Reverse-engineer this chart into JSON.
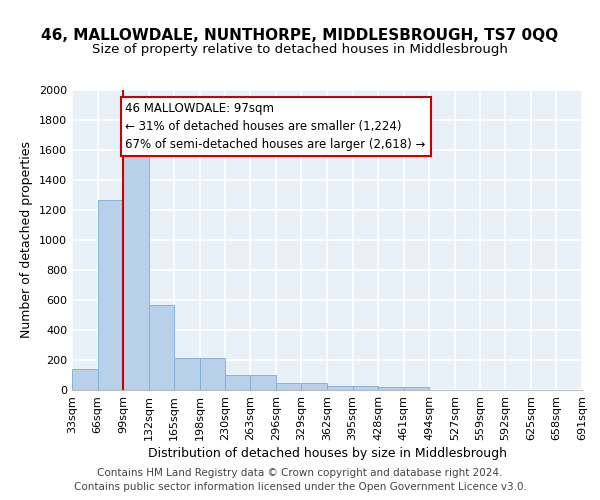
{
  "title": "46, MALLOWDALE, NUNTHORPE, MIDDLESBROUGH, TS7 0QQ",
  "subtitle": "Size of property relative to detached houses in Middlesbrough",
  "xlabel": "Distribution of detached houses by size in Middlesbrough",
  "ylabel": "Number of detached properties",
  "bin_edges": [
    33,
    66,
    99,
    132,
    165,
    198,
    230,
    263,
    296,
    329,
    362,
    395,
    428,
    461,
    494,
    527,
    559,
    592,
    625,
    658,
    691
  ],
  "bin_labels": [
    "33sqm",
    "66sqm",
    "99sqm",
    "132sqm",
    "165sqm",
    "198sqm",
    "230sqm",
    "263sqm",
    "296sqm",
    "329sqm",
    "362sqm",
    "395sqm",
    "428sqm",
    "461sqm",
    "494sqm",
    "527sqm",
    "559sqm",
    "592sqm",
    "625sqm",
    "658sqm",
    "691sqm"
  ],
  "values": [
    140,
    1265,
    1565,
    570,
    215,
    215,
    100,
    100,
    50,
    50,
    30,
    30,
    20,
    20,
    0,
    0,
    0,
    0,
    0,
    0
  ],
  "bar_color": "#b8d0ea",
  "bar_edge_color": "#7aadd4",
  "bg_color": "#e8f0f8",
  "grid_color": "#ffffff",
  "property_line_x": 99,
  "property_line_color": "#cc0000",
  "annotation_text": "46 MALLOWDALE: 97sqm\n← 31% of detached houses are smaller (1,224)\n67% of semi-detached houses are larger (2,618) →",
  "annotation_box_color": "#ffffff",
  "annotation_box_edge": "#cc0000",
  "footer": "Contains HM Land Registry data © Crown copyright and database right 2024.\nContains public sector information licensed under the Open Government Licence v3.0.",
  "ylim": [
    0,
    2000
  ],
  "title_fontsize": 11,
  "subtitle_fontsize": 9.5,
  "label_fontsize": 9,
  "tick_fontsize": 8,
  "footer_fontsize": 7.5
}
